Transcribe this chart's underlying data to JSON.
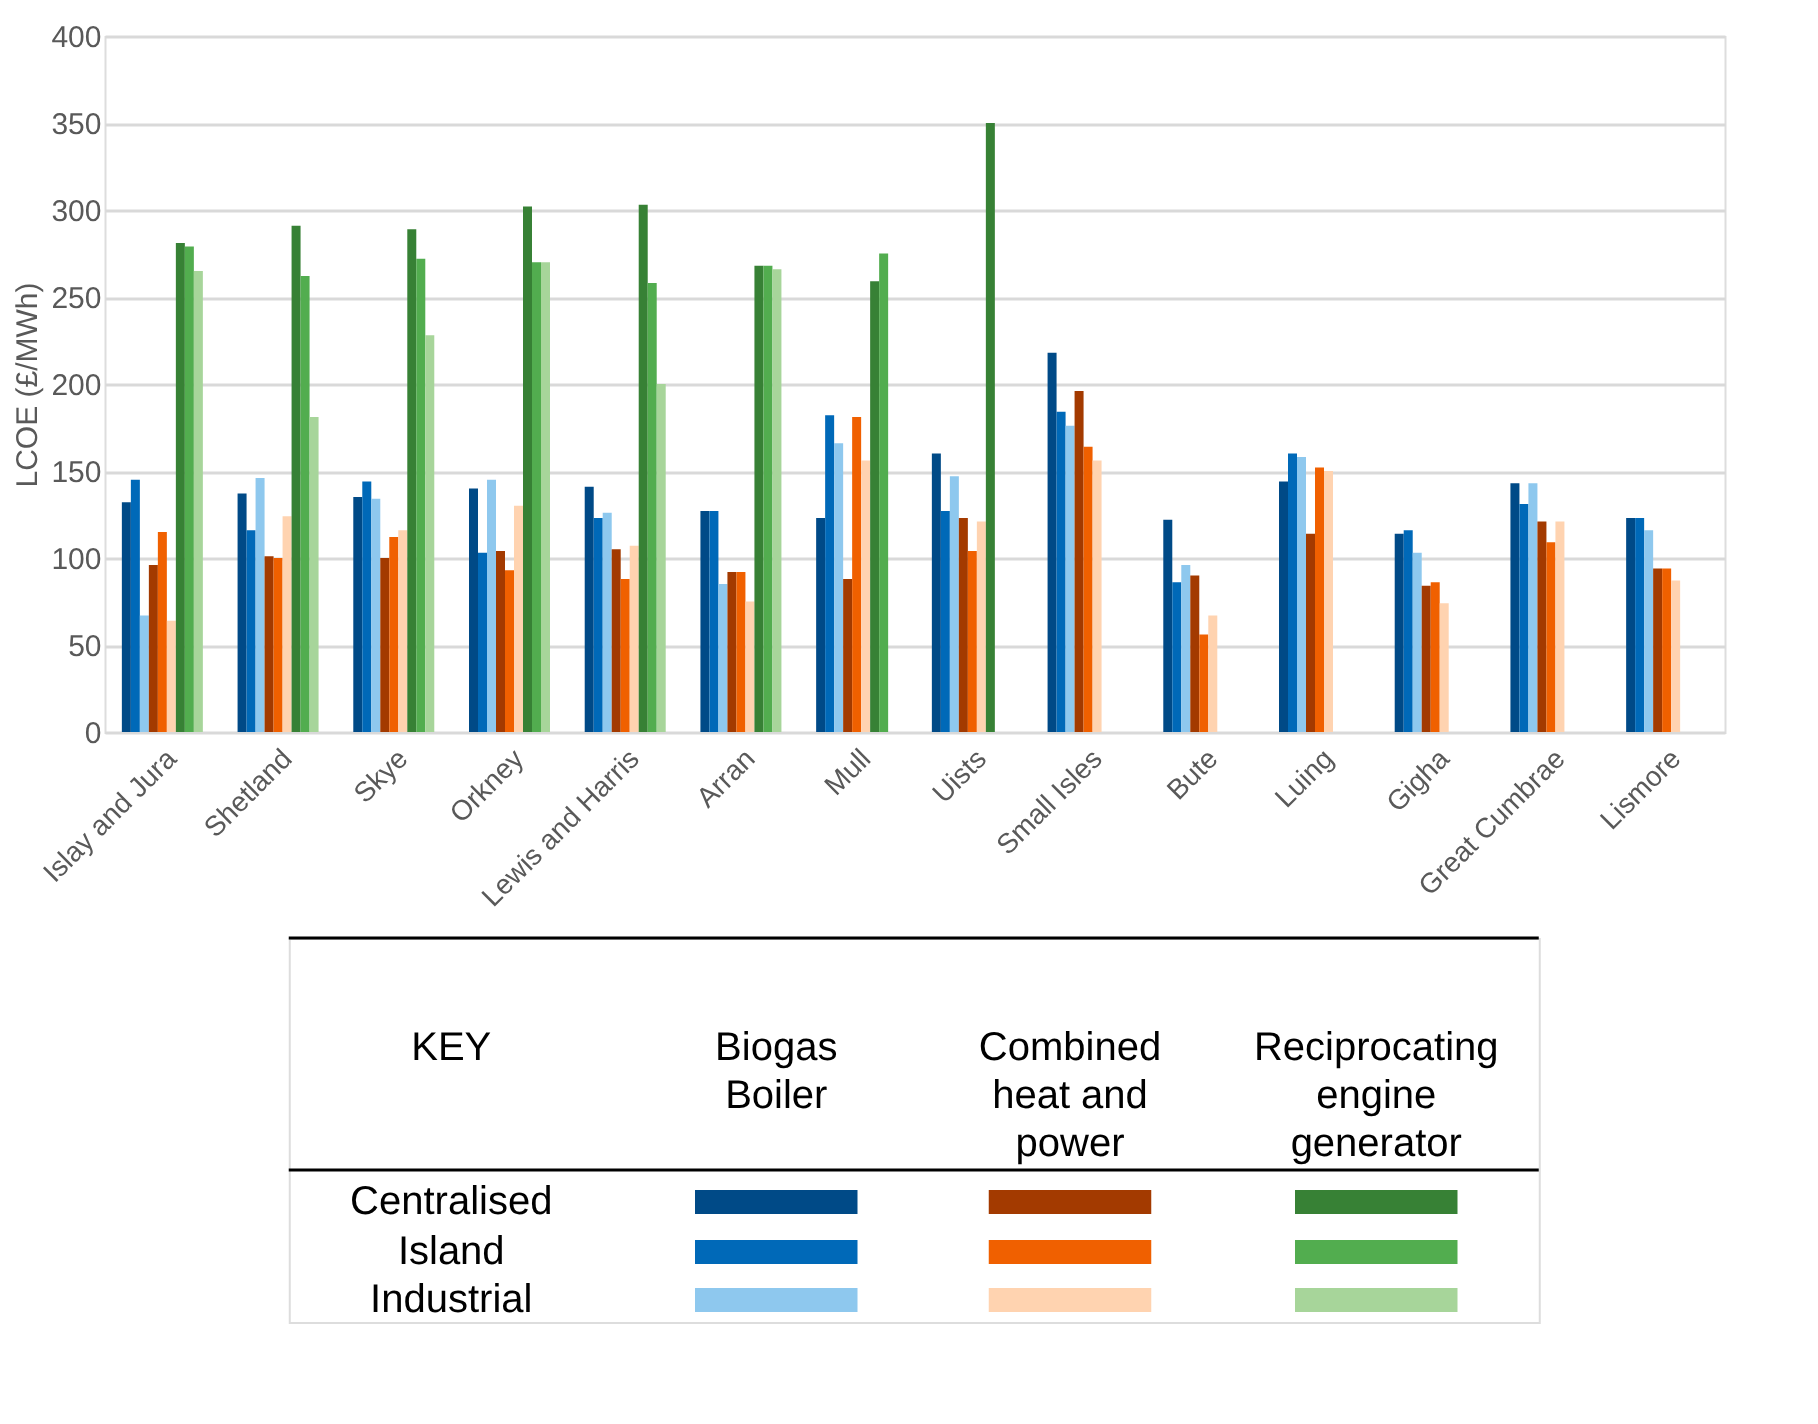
{
  "chart_data": {
    "type": "bar",
    "ylabel": "LCOE (£/MWh)",
    "categories": [
      "Islay and Jura",
      "Shetland",
      "Skye",
      "Orkney",
      "Lewis and Harris",
      "Arran",
      "Mull",
      "Uists",
      "Small Isles",
      "Bute",
      "Luing",
      "Gigha",
      "Great Cumbrae",
      "Lismore"
    ],
    "series": [
      {
        "color": "#004a87",
        "values": [
          132,
          137,
          135,
          140,
          141,
          127,
          123,
          160,
          218,
          122,
          144,
          114,
          143,
          123
        ]
      },
      {
        "color": "#0069b8",
        "values": [
          145,
          116,
          144,
          103,
          123,
          127,
          182,
          127,
          184,
          86,
          160,
          116,
          131,
          123
        ]
      },
      {
        "color": "#8ec8ee",
        "values": [
          67,
          146,
          134,
          145,
          126,
          85,
          166,
          147,
          176,
          96,
          158,
          103,
          143,
          116
        ]
      },
      {
        "color": "#a33a00",
        "values": [
          96,
          101,
          100,
          104,
          105,
          92,
          88,
          123,
          196,
          90,
          114,
          84,
          121,
          94
        ]
      },
      {
        "color": "#f06000",
        "values": [
          115,
          100,
          112,
          93,
          88,
          92,
          181,
          104,
          164,
          56,
          152,
          86,
          109,
          94
        ]
      },
      {
        "color": "#ffd3b0",
        "values": [
          64,
          124,
          116,
          130,
          107,
          75,
          156,
          121,
          156,
          67,
          150,
          74,
          121,
          87
        ]
      },
      {
        "color": "#378135",
        "values": [
          281,
          291,
          289,
          302,
          303,
          268,
          259,
          350,
          null,
          null,
          null,
          null,
          null,
          null
        ]
      },
      {
        "color": "#52ad4f",
        "values": [
          279,
          262,
          272,
          270,
          258,
          268,
          275,
          null,
          null,
          null,
          null,
          null,
          null,
          null
        ]
      },
      {
        "color": "#a7d59a",
        "values": [
          265,
          181,
          228,
          270,
          200,
          266,
          null,
          null,
          null,
          null,
          null,
          null,
          null,
          null
        ]
      }
    ],
    "ylim": [
      0,
      400
    ],
    "yticks": [
      0,
      50,
      100,
      150,
      200,
      250,
      300,
      350,
      400
    ],
    "grid": "y",
    "annotations": [
      "KEY",
      "Biogas Boiler",
      "Combined heat and power",
      "Reciprocating engine generator",
      "Centralised",
      "Island",
      "Industrial"
    ]
  }
}
